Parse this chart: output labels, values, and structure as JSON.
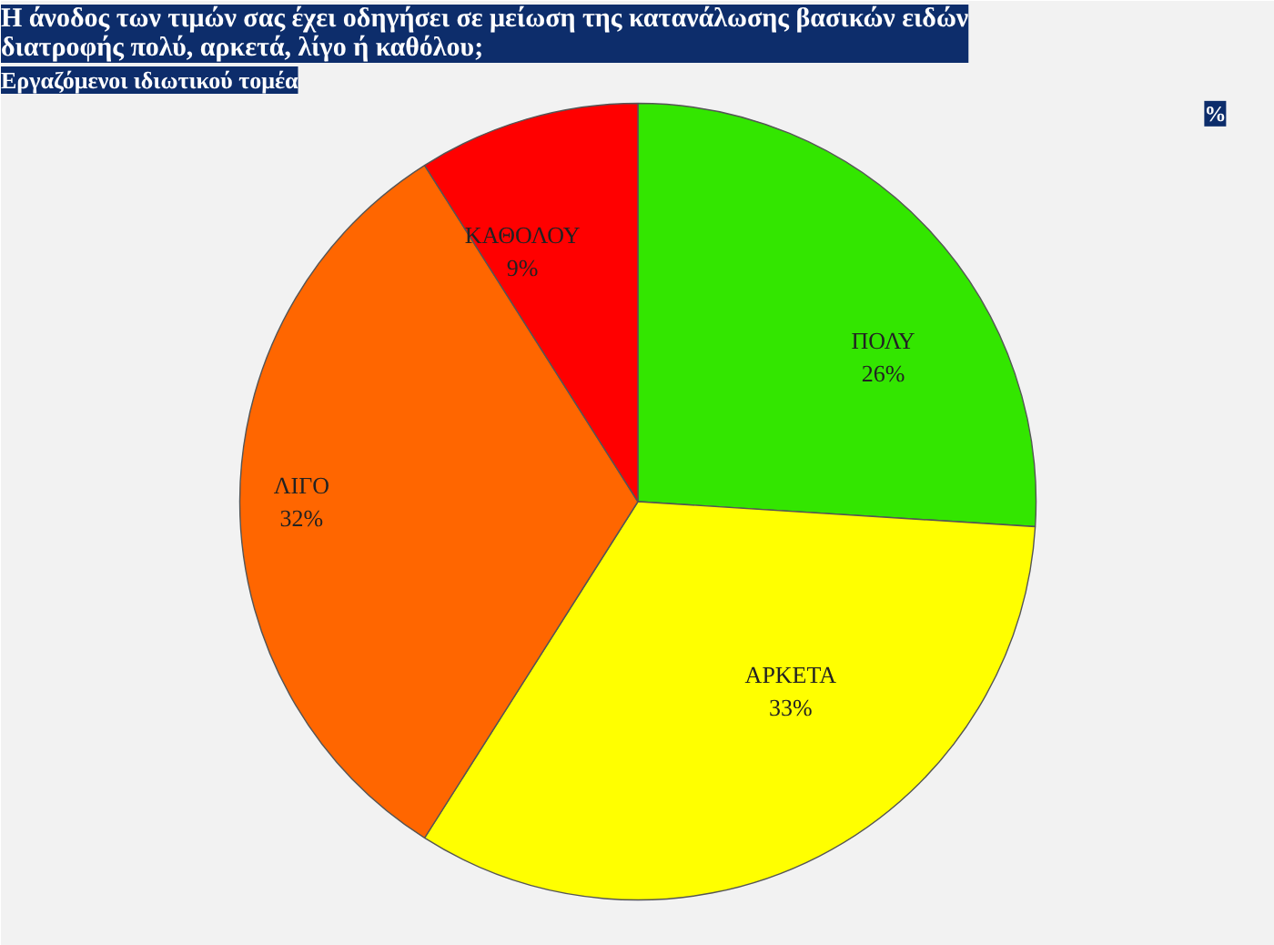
{
  "chart_data": {
    "type": "pie",
    "title": "Η άνοδος των τιμών σας έχει οδηγήσει σε μείωση της κατανάλωσης βασικών ειδών διατροφής πολύ, αρκετά, λίγο ή καθόλου;",
    "subtitle": "Εργαζόμενοι ιδιωτικού τομέα",
    "annotations": [
      "%"
    ],
    "categories": [
      "ΠΟΛΥ",
      "ΑΡΚΕΤΑ",
      "ΛΙΓΟ",
      "ΚΑΘΟΛΟΥ"
    ],
    "values": [
      26,
      33,
      32,
      9
    ],
    "colors": [
      "#33e600",
      "#ffff00",
      "#ff6600",
      "#ff0000"
    ],
    "value_labels": [
      "26%",
      "33%",
      "32%",
      "9%"
    ]
  }
}
